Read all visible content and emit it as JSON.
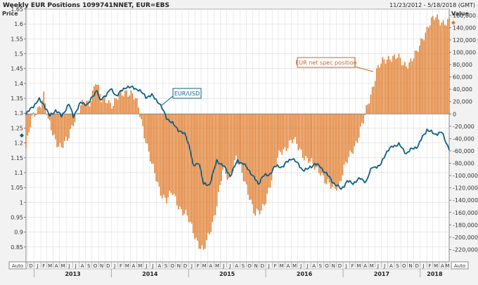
{
  "header": {
    "title": "Weekly EUR Positions 1099741NNET, EUR=EBS",
    "date_range": "11/23/2012 - 5/18/2018 (GMT)"
  },
  "axes": {
    "left_label": "Price",
    "right_label": "Value",
    "auto_left": "Auto",
    "auto_right": "Auto"
  },
  "colors": {
    "bars": "#e07b2a",
    "line": "#0e5f86",
    "grid": "#d9d9d9",
    "panel_bg": "#ffffff",
    "frame": "#888888"
  },
  "chart_data": {
    "type": "bar",
    "title": "Weekly EUR Positions 1099741NNET, EUR=EBS",
    "x_range": [
      "2012-11-23",
      "2018-05-18"
    ],
    "y_left": {
      "label": "Price",
      "range": [
        0.8,
        1.65
      ],
      "ticks": [
        "0.85",
        "0.9",
        "0.95",
        "1",
        "1.05",
        "1.1",
        "1.15",
        "1.2",
        "1.25",
        "1.3",
        "1.35",
        "1.4",
        "1.45",
        "1.5",
        "1.55",
        "1.6",
        "1.65"
      ]
    },
    "y_right": {
      "label": "Value",
      "range": [
        -240000,
        170000
      ],
      "ticks": [
        "160,000",
        "140,000",
        "120,000",
        "100,000",
        "80,000",
        "60,000",
        "40,000",
        "20,000",
        "0",
        "-20,000",
        "-40,000",
        "-60,000",
        "-80,000",
        "-100,000",
        "-120,000",
        "-140,000",
        "-160,000",
        "-180,000",
        "-200,000",
        "-220,000"
      ]
    },
    "x_months": [
      "D",
      "J",
      "F",
      "M",
      "A",
      "M",
      "J",
      "J",
      "A",
      "S",
      "O",
      "N",
      "D",
      "J",
      "F",
      "M",
      "A",
      "M",
      "J",
      "J",
      "A",
      "S",
      "O",
      "N",
      "D",
      "J",
      "F",
      "M",
      "A",
      "M",
      "J",
      "J",
      "A",
      "S",
      "O",
      "N",
      "D",
      "J",
      "F",
      "M",
      "A",
      "M",
      "J",
      "J",
      "A",
      "S",
      "O",
      "N",
      "D",
      "J",
      "F",
      "M",
      "A",
      "M",
      "J",
      "J",
      "A",
      "S",
      "O",
      "N",
      "D",
      "J",
      "F",
      "M",
      "A",
      "M"
    ],
    "x_years": [
      "2013",
      "2014",
      "2015",
      "2016",
      "2017",
      "2018"
    ],
    "grid": true,
    "series": [
      {
        "name": "EUR net spec position",
        "axis": "right",
        "type": "bar",
        "keypoints": [
          [
            "2012-11-23",
            -55000
          ],
          [
            "2012-12-21",
            -10000
          ],
          [
            "2013-01-25",
            15000
          ],
          [
            "2013-02-15",
            30000
          ],
          [
            "2013-03-08",
            -15000
          ],
          [
            "2013-04-12",
            -40000
          ],
          [
            "2013-05-10",
            -55000
          ],
          [
            "2013-06-07",
            -45000
          ],
          [
            "2013-07-05",
            -10000
          ],
          [
            "2013-08-09",
            10000
          ],
          [
            "2013-09-20",
            20000
          ],
          [
            "2013-10-18",
            55000
          ],
          [
            "2013-11-15",
            20000
          ],
          [
            "2013-12-13",
            25000
          ],
          [
            "2014-01-10",
            15000
          ],
          [
            "2014-02-14",
            30000
          ],
          [
            "2014-03-14",
            40000
          ],
          [
            "2014-04-11",
            30000
          ],
          [
            "2014-05-09",
            10000
          ],
          [
            "2014-06-13",
            -40000
          ],
          [
            "2014-07-11",
            -85000
          ],
          [
            "2014-08-15",
            -120000
          ],
          [
            "2014-09-19",
            -140000
          ],
          [
            "2014-10-17",
            -130000
          ],
          [
            "2014-11-21",
            -150000
          ],
          [
            "2014-12-19",
            -165000
          ],
          [
            "2015-01-16",
            -185000
          ],
          [
            "2015-02-13",
            -205000
          ],
          [
            "2015-03-13",
            -225000
          ],
          [
            "2015-04-10",
            -195000
          ],
          [
            "2015-05-08",
            -155000
          ],
          [
            "2015-06-12",
            -95000
          ],
          [
            "2015-07-10",
            -105000
          ],
          [
            "2015-08-14",
            -70000
          ],
          [
            "2015-09-11",
            -100000
          ],
          [
            "2015-10-16",
            -130000
          ],
          [
            "2015-11-13",
            -165000
          ],
          [
            "2015-12-11",
            -160000
          ],
          [
            "2016-01-15",
            -120000
          ],
          [
            "2016-02-12",
            -90000
          ],
          [
            "2016-03-11",
            -60000
          ],
          [
            "2016-04-15",
            -50000
          ],
          [
            "2016-05-13",
            -45000
          ],
          [
            "2016-06-10",
            -55000
          ],
          [
            "2016-07-15",
            -75000
          ],
          [
            "2016-08-12",
            -85000
          ],
          [
            "2016-09-16",
            -90000
          ],
          [
            "2016-10-14",
            -115000
          ],
          [
            "2016-11-11",
            -120000
          ],
          [
            "2016-12-16",
            -110000
          ],
          [
            "2017-01-13",
            -85000
          ],
          [
            "2017-02-10",
            -60000
          ],
          [
            "2017-03-10",
            -40000
          ],
          [
            "2017-04-07",
            -15000
          ],
          [
            "2017-05-05",
            25000
          ],
          [
            "2017-06-09",
            70000
          ],
          [
            "2017-07-14",
            85000
          ],
          [
            "2017-08-11",
            95000
          ],
          [
            "2017-09-15",
            90000
          ],
          [
            "2017-10-13",
            80000
          ],
          [
            "2017-11-10",
            85000
          ],
          [
            "2017-12-15",
            95000
          ],
          [
            "2018-01-12",
            125000
          ],
          [
            "2018-02-09",
            145000
          ],
          [
            "2018-03-16",
            155000
          ],
          [
            "2018-04-13",
            152000
          ],
          [
            "2018-05-18",
            148000
          ]
        ]
      },
      {
        "name": "EUR/USD",
        "axis": "left",
        "type": "line",
        "keypoints": [
          [
            "2012-11-23",
            1.295
          ],
          [
            "2012-12-21",
            1.32
          ],
          [
            "2013-01-25",
            1.345
          ],
          [
            "2013-02-15",
            1.33
          ],
          [
            "2013-03-15",
            1.29
          ],
          [
            "2013-04-12",
            1.31
          ],
          [
            "2013-05-10",
            1.29
          ],
          [
            "2013-06-14",
            1.33
          ],
          [
            "2013-07-05",
            1.29
          ],
          [
            "2013-08-09",
            1.335
          ],
          [
            "2013-09-13",
            1.33
          ],
          [
            "2013-10-25",
            1.38
          ],
          [
            "2013-11-08",
            1.34
          ],
          [
            "2013-12-27",
            1.38
          ],
          [
            "2014-01-24",
            1.36
          ],
          [
            "2014-02-28",
            1.38
          ],
          [
            "2014-03-14",
            1.39
          ],
          [
            "2014-04-11",
            1.385
          ],
          [
            "2014-05-09",
            1.38
          ],
          [
            "2014-06-13",
            1.355
          ],
          [
            "2014-07-11",
            1.36
          ],
          [
            "2014-08-15",
            1.335
          ],
          [
            "2014-09-19",
            1.285
          ],
          [
            "2014-10-17",
            1.265
          ],
          [
            "2014-11-21",
            1.24
          ],
          [
            "2014-12-19",
            1.225
          ],
          [
            "2015-01-09",
            1.18
          ],
          [
            "2015-01-23",
            1.12
          ],
          [
            "2015-02-20",
            1.135
          ],
          [
            "2015-03-13",
            1.06
          ],
          [
            "2015-04-10",
            1.06
          ],
          [
            "2015-05-15",
            1.14
          ],
          [
            "2015-06-12",
            1.125
          ],
          [
            "2015-07-17",
            1.09
          ],
          [
            "2015-08-21",
            1.14
          ],
          [
            "2015-09-18",
            1.13
          ],
          [
            "2015-10-23",
            1.1
          ],
          [
            "2015-11-27",
            1.06
          ],
          [
            "2015-12-18",
            1.09
          ],
          [
            "2016-01-15",
            1.09
          ],
          [
            "2016-02-12",
            1.12
          ],
          [
            "2016-03-18",
            1.12
          ],
          [
            "2016-05-06",
            1.15
          ],
          [
            "2016-06-24",
            1.11
          ],
          [
            "2016-07-15",
            1.11
          ],
          [
            "2016-08-19",
            1.13
          ],
          [
            "2016-09-16",
            1.12
          ],
          [
            "2016-10-21",
            1.09
          ],
          [
            "2016-11-25",
            1.06
          ],
          [
            "2016-12-23",
            1.045
          ],
          [
            "2017-01-20",
            1.07
          ],
          [
            "2017-02-17",
            1.065
          ],
          [
            "2017-03-24",
            1.08
          ],
          [
            "2017-04-21",
            1.07
          ],
          [
            "2017-05-19",
            1.12
          ],
          [
            "2017-06-23",
            1.12
          ],
          [
            "2017-07-21",
            1.165
          ],
          [
            "2017-08-25",
            1.19
          ],
          [
            "2017-09-22",
            1.195
          ],
          [
            "2017-10-27",
            1.165
          ],
          [
            "2017-11-24",
            1.18
          ],
          [
            "2017-12-22",
            1.19
          ],
          [
            "2018-01-12",
            1.22
          ],
          [
            "2018-02-02",
            1.245
          ],
          [
            "2018-03-09",
            1.23
          ],
          [
            "2018-04-13",
            1.235
          ],
          [
            "2018-05-18",
            1.18
          ]
        ]
      }
    ],
    "annotations": [
      {
        "series": "EUR/USD",
        "label": "EUR/USD"
      },
      {
        "series": "EUR net spec position",
        "label": "EUR net spec position"
      }
    ]
  }
}
